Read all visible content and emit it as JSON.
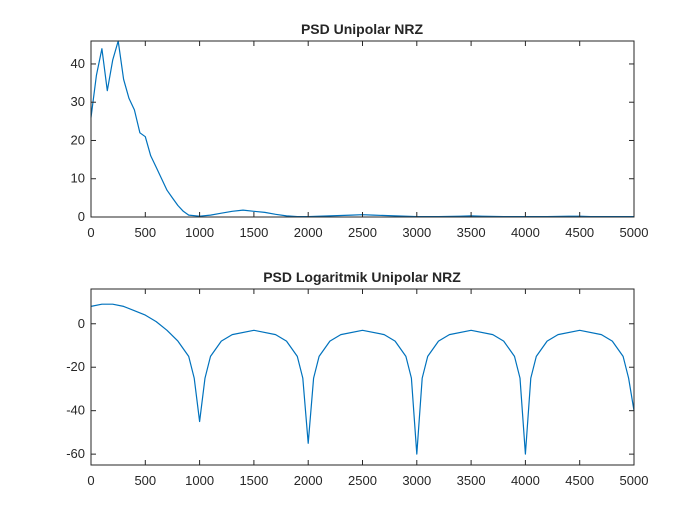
{
  "colors": {
    "series": "#0072BD",
    "axis": "#262626",
    "background": "#ffffff"
  },
  "chart_data": [
    {
      "type": "line",
      "title": "PSD Unipolar NRZ",
      "xlabel": "",
      "ylabel": "",
      "xlim": [
        0,
        5000
      ],
      "ylim": [
        0,
        46
      ],
      "xticks": [
        0,
        500,
        1000,
        1500,
        2000,
        2500,
        3000,
        3500,
        4000,
        4500,
        5000
      ],
      "yticks": [
        0,
        10,
        20,
        30,
        40
      ],
      "grid": false,
      "series": [
        {
          "x": [
            0,
            50,
            100,
            150,
            200,
            250,
            300,
            350,
            400,
            450,
            500,
            550,
            600,
            650,
            700,
            750,
            800,
            850,
            900,
            1000,
            1100,
            1200,
            1300,
            1400,
            1500,
            1600,
            1700,
            1800,
            1900,
            2000,
            2200,
            2400,
            2500,
            2600,
            2800,
            3000,
            3200,
            3400,
            3500,
            3600,
            3800,
            4000,
            4200,
            4400,
            4500,
            4600,
            4800,
            5000
          ],
          "values": [
            26,
            37,
            44,
            33,
            41,
            46,
            36,
            31,
            28,
            22,
            21,
            16,
            13,
            10,
            7,
            5,
            3,
            1.5,
            0.5,
            0.2,
            0.5,
            1.0,
            1.5,
            1.8,
            1.5,
            1.2,
            0.7,
            0.3,
            0.1,
            0.1,
            0.3,
            0.5,
            0.6,
            0.5,
            0.3,
            0.1,
            0.1,
            0.2,
            0.3,
            0.2,
            0.1,
            0.1,
            0.1,
            0.2,
            0.2,
            0.1,
            0.1,
            0.1
          ]
        }
      ]
    },
    {
      "type": "line",
      "title": "PSD Logaritmik Unipolar NRZ",
      "xlabel": "",
      "ylabel": "",
      "xlim": [
        0,
        5000
      ],
      "ylim": [
        -65,
        16
      ],
      "xticks": [
        0,
        500,
        1000,
        1500,
        2000,
        2500,
        3000,
        3500,
        4000,
        4500,
        5000
      ],
      "yticks": [
        0,
        -20,
        -40,
        -60
      ],
      "grid": false,
      "series": [
        {
          "x": [
            0,
            100,
            200,
            300,
            400,
            500,
            600,
            700,
            800,
            900,
            950,
            1000,
            1050,
            1100,
            1200,
            1300,
            1500,
            1700,
            1800,
            1900,
            1950,
            2000,
            2050,
            2100,
            2200,
            2300,
            2500,
            2700,
            2800,
            2900,
            2950,
            3000,
            3050,
            3100,
            3200,
            3300,
            3500,
            3700,
            3800,
            3900,
            3950,
            4000,
            4050,
            4100,
            4200,
            4300,
            4500,
            4700,
            4800,
            4900,
            4950,
            5000
          ],
          "values": [
            8,
            9,
            9,
            8,
            6,
            4,
            1,
            -3,
            -8,
            -15,
            -25,
            -45,
            -25,
            -15,
            -8,
            -5,
            -3,
            -5,
            -8,
            -15,
            -25,
            -55,
            -25,
            -15,
            -8,
            -5,
            -3,
            -5,
            -8,
            -15,
            -25,
            -60,
            -25,
            -15,
            -8,
            -5,
            -3,
            -5,
            -8,
            -15,
            -25,
            -60,
            -25,
            -15,
            -8,
            -5,
            -3,
            -5,
            -8,
            -15,
            -25,
            -40
          ]
        }
      ]
    }
  ]
}
